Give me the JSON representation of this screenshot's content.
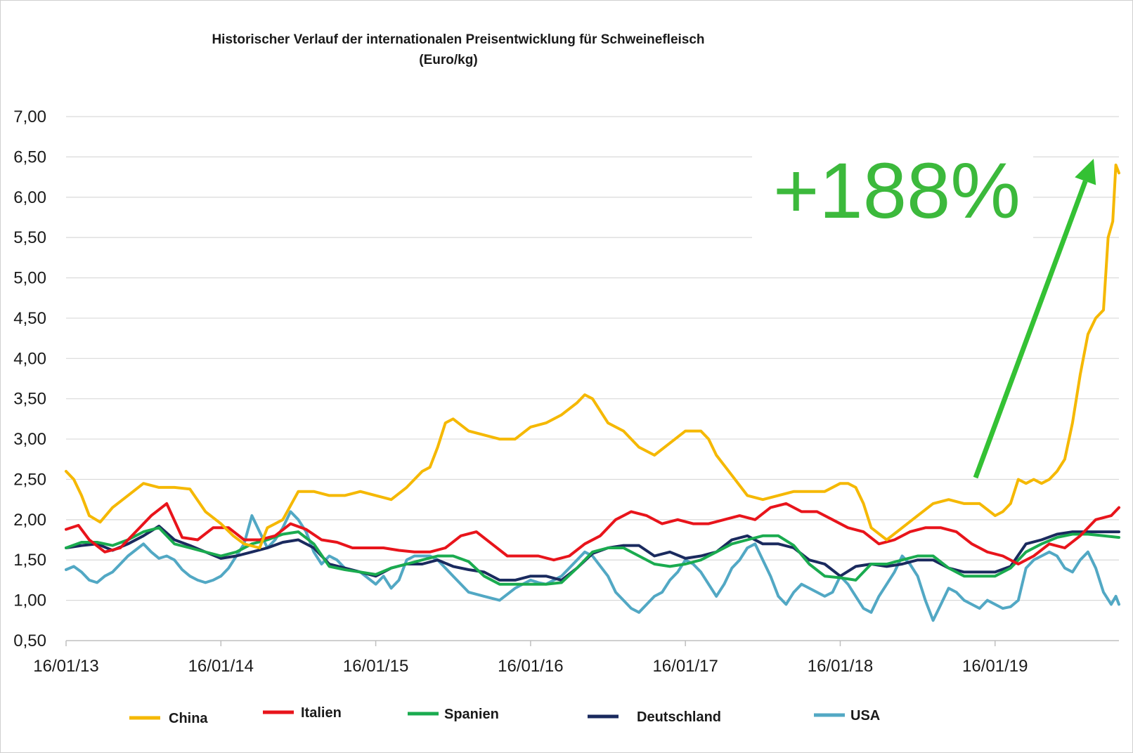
{
  "chart_data": {
    "type": "line",
    "title": "Historischer Verlauf der internationalen Preisentwicklung für Schweinefleisch",
    "subtitle": "(Euro/kg)",
    "xlabel": "",
    "ylabel": "",
    "ylim": [
      0.5,
      7.0
    ],
    "y_ticks": [
      "7,00",
      "6,50",
      "6,00",
      "5,50",
      "5,00",
      "4,50",
      "4,00",
      "3,50",
      "3,00",
      "2,50",
      "2,00",
      "1,50",
      "1,00",
      "0,50"
    ],
    "y_tick_values": [
      7.0,
      6.5,
      6.0,
      5.5,
      5.0,
      4.5,
      4.0,
      3.5,
      3.0,
      2.5,
      2.0,
      1.5,
      1.0,
      0.5
    ],
    "x_ticks": [
      "16/01/13",
      "16/01/14",
      "16/01/15",
      "16/01/16",
      "16/01/17",
      "16/01/18",
      "16/01/19"
    ],
    "x_tick_values": [
      2013.0,
      2014.0,
      2015.0,
      2016.0,
      2017.0,
      2018.0,
      2019.0
    ],
    "xlim": [
      2013.0,
      2019.8
    ],
    "grid": "horizontal",
    "legend_position": "bottom",
    "series": [
      {
        "name": "China",
        "color": "#f5b800",
        "x": [
          2013.0,
          2013.05,
          2013.1,
          2013.15,
          2013.22,
          2013.3,
          2013.4,
          2013.5,
          2013.6,
          2013.7,
          2013.8,
          2013.9,
          2014.0,
          2014.08,
          2014.15,
          2014.25,
          2014.3,
          2014.35,
          2014.4,
          2014.5,
          2014.6,
          2014.7,
          2014.8,
          2014.9,
          2015.0,
          2015.1,
          2015.2,
          2015.3,
          2015.35,
          2015.4,
          2015.45,
          2015.5,
          2015.6,
          2015.7,
          2015.8,
          2015.9,
          2016.0,
          2016.1,
          2016.2,
          2016.3,
          2016.35,
          2016.4,
          2016.5,
          2016.6,
          2016.7,
          2016.8,
          2016.9,
          2017.0,
          2017.1,
          2017.15,
          2017.2,
          2017.3,
          2017.4,
          2017.5,
          2017.6,
          2017.7,
          2017.8,
          2017.9,
          2018.0,
          2018.05,
          2018.1,
          2018.15,
          2018.2,
          2018.3,
          2018.4,
          2018.5,
          2018.6,
          2018.7,
          2018.8,
          2018.9,
          2019.0,
          2019.05,
          2019.1,
          2019.15,
          2019.2,
          2019.25,
          2019.3,
          2019.35,
          2019.4,
          2019.45,
          2019.5,
          2019.55,
          2019.6,
          2019.65,
          2019.7,
          2019.73,
          2019.76,
          2019.78,
          2019.8
        ],
        "y": [
          2.6,
          2.5,
          2.3,
          2.05,
          1.97,
          2.15,
          2.3,
          2.45,
          2.4,
          2.4,
          2.38,
          2.1,
          1.95,
          1.8,
          1.7,
          1.65,
          1.9,
          1.95,
          2.0,
          2.35,
          2.35,
          2.3,
          2.3,
          2.35,
          2.3,
          2.25,
          2.4,
          2.6,
          2.65,
          2.9,
          3.2,
          3.25,
          3.1,
          3.05,
          3.0,
          3.0,
          3.15,
          3.2,
          3.3,
          3.45,
          3.55,
          3.5,
          3.2,
          3.1,
          2.9,
          2.8,
          2.95,
          3.1,
          3.1,
          3.0,
          2.8,
          2.55,
          2.3,
          2.25,
          2.3,
          2.35,
          2.35,
          2.35,
          2.45,
          2.45,
          2.4,
          2.2,
          1.9,
          1.75,
          1.9,
          2.05,
          2.2,
          2.25,
          2.2,
          2.2,
          2.05,
          2.1,
          2.2,
          2.5,
          2.45,
          2.5,
          2.45,
          2.5,
          2.6,
          2.75,
          3.2,
          3.8,
          4.3,
          4.5,
          4.6,
          5.5,
          5.7,
          6.4,
          6.3
        ]
      },
      {
        "name": "Italien",
        "color": "#e8141b",
        "x": [
          2013.0,
          2013.08,
          2013.15,
          2013.25,
          2013.35,
          2013.45,
          2013.55,
          2013.65,
          2013.75,
          2013.85,
          2013.95,
          2014.05,
          2014.15,
          2014.25,
          2014.35,
          2014.45,
          2014.55,
          2014.65,
          2014.75,
          2014.85,
          2014.95,
          2015.05,
          2015.15,
          2015.25,
          2015.35,
          2015.45,
          2015.55,
          2015.65,
          2015.75,
          2015.85,
          2015.95,
          2016.05,
          2016.15,
          2016.25,
          2016.35,
          2016.45,
          2016.55,
          2016.65,
          2016.75,
          2016.85,
          2016.95,
          2017.05,
          2017.15,
          2017.25,
          2017.35,
          2017.45,
          2017.55,
          2017.65,
          2017.75,
          2017.85,
          2017.95,
          2018.05,
          2018.15,
          2018.25,
          2018.35,
          2018.45,
          2018.55,
          2018.65,
          2018.75,
          2018.85,
          2018.95,
          2019.05,
          2019.15,
          2019.25,
          2019.35,
          2019.45,
          2019.55,
          2019.65,
          2019.75,
          2019.8
        ],
        "y": [
          1.88,
          1.93,
          1.75,
          1.6,
          1.65,
          1.85,
          2.05,
          2.2,
          1.78,
          1.75,
          1.9,
          1.9,
          1.75,
          1.75,
          1.8,
          1.95,
          1.88,
          1.75,
          1.72,
          1.65,
          1.65,
          1.65,
          1.62,
          1.6,
          1.6,
          1.65,
          1.8,
          1.85,
          1.7,
          1.55,
          1.55,
          1.55,
          1.5,
          1.55,
          1.7,
          1.8,
          2.0,
          2.1,
          2.05,
          1.95,
          2.0,
          1.95,
          1.95,
          2.0,
          2.05,
          2.0,
          2.15,
          2.2,
          2.1,
          2.1,
          2.0,
          1.9,
          1.85,
          1.7,
          1.75,
          1.85,
          1.9,
          1.9,
          1.85,
          1.7,
          1.6,
          1.55,
          1.45,
          1.55,
          1.7,
          1.65,
          1.8,
          2.0,
          2.05,
          2.15
        ]
      },
      {
        "name": "Spanien",
        "color": "#1aab4f",
        "x": [
          2013.0,
          2013.1,
          2013.2,
          2013.3,
          2013.4,
          2013.5,
          2013.6,
          2013.7,
          2013.8,
          2013.9,
          2014.0,
          2014.1,
          2014.2,
          2014.3,
          2014.4,
          2014.5,
          2014.6,
          2014.7,
          2014.8,
          2014.9,
          2015.0,
          2015.1,
          2015.2,
          2015.3,
          2015.4,
          2015.5,
          2015.6,
          2015.7,
          2015.8,
          2015.9,
          2016.0,
          2016.1,
          2016.2,
          2016.3,
          2016.4,
          2016.5,
          2016.6,
          2016.7,
          2016.8,
          2016.9,
          2017.0,
          2017.1,
          2017.2,
          2017.3,
          2017.4,
          2017.5,
          2017.6,
          2017.7,
          2017.8,
          2017.9,
          2018.0,
          2018.1,
          2018.2,
          2018.3,
          2018.4,
          2018.5,
          2018.6,
          2018.7,
          2018.8,
          2018.9,
          2019.0,
          2019.1,
          2019.2,
          2019.3,
          2019.4,
          2019.5,
          2019.6,
          2019.7,
          2019.8
        ],
        "y": [
          1.65,
          1.72,
          1.72,
          1.68,
          1.75,
          1.85,
          1.9,
          1.7,
          1.65,
          1.6,
          1.55,
          1.6,
          1.7,
          1.75,
          1.82,
          1.85,
          1.7,
          1.42,
          1.38,
          1.35,
          1.32,
          1.4,
          1.45,
          1.5,
          1.55,
          1.55,
          1.48,
          1.3,
          1.2,
          1.2,
          1.2,
          1.2,
          1.22,
          1.4,
          1.6,
          1.65,
          1.65,
          1.55,
          1.45,
          1.42,
          1.45,
          1.5,
          1.6,
          1.7,
          1.75,
          1.8,
          1.8,
          1.68,
          1.45,
          1.3,
          1.28,
          1.25,
          1.45,
          1.45,
          1.5,
          1.55,
          1.55,
          1.4,
          1.3,
          1.3,
          1.3,
          1.4,
          1.6,
          1.7,
          1.78,
          1.82,
          1.82,
          1.8,
          1.78
        ]
      },
      {
        "name": "Deutschland",
        "color": "#1a2a5e",
        "x": [
          2013.0,
          2013.1,
          2013.2,
          2013.3,
          2013.4,
          2013.5,
          2013.6,
          2013.7,
          2013.8,
          2013.9,
          2014.0,
          2014.1,
          2014.2,
          2014.3,
          2014.4,
          2014.5,
          2014.6,
          2014.7,
          2014.8,
          2014.9,
          2015.0,
          2015.1,
          2015.2,
          2015.3,
          2015.4,
          2015.5,
          2015.6,
          2015.7,
          2015.8,
          2015.9,
          2016.0,
          2016.1,
          2016.2,
          2016.3,
          2016.4,
          2016.5,
          2016.6,
          2016.7,
          2016.8,
          2016.9,
          2017.0,
          2017.1,
          2017.2,
          2017.3,
          2017.4,
          2017.5,
          2017.6,
          2017.7,
          2017.8,
          2017.9,
          2018.0,
          2018.1,
          2018.2,
          2018.3,
          2018.4,
          2018.5,
          2018.6,
          2018.7,
          2018.8,
          2018.9,
          2019.0,
          2019.1,
          2019.2,
          2019.3,
          2019.4,
          2019.5,
          2019.6,
          2019.7,
          2019.8
        ],
        "y": [
          1.65,
          1.68,
          1.7,
          1.62,
          1.7,
          1.8,
          1.92,
          1.75,
          1.68,
          1.6,
          1.52,
          1.55,
          1.6,
          1.65,
          1.72,
          1.75,
          1.65,
          1.45,
          1.4,
          1.35,
          1.3,
          1.4,
          1.45,
          1.45,
          1.5,
          1.42,
          1.38,
          1.35,
          1.25,
          1.25,
          1.3,
          1.3,
          1.25,
          1.4,
          1.58,
          1.65,
          1.68,
          1.68,
          1.55,
          1.6,
          1.52,
          1.55,
          1.6,
          1.75,
          1.8,
          1.7,
          1.7,
          1.65,
          1.5,
          1.45,
          1.3,
          1.42,
          1.45,
          1.42,
          1.45,
          1.5,
          1.5,
          1.4,
          1.35,
          1.35,
          1.35,
          1.42,
          1.7,
          1.75,
          1.82,
          1.85,
          1.85,
          1.85,
          1.85
        ]
      },
      {
        "name": "USA",
        "color": "#52a8c4",
        "x": [
          2013.0,
          2013.05,
          2013.1,
          2013.15,
          2013.2,
          2013.25,
          2013.3,
          2013.35,
          2013.4,
          2013.5,
          2013.55,
          2013.6,
          2013.65,
          2013.7,
          2013.75,
          2013.8,
          2013.85,
          2013.9,
          2013.95,
          2014.0,
          2014.05,
          2014.1,
          2014.15,
          2014.2,
          2014.25,
          2014.3,
          2014.35,
          2014.4,
          2014.45,
          2014.5,
          2014.55,
          2014.6,
          2014.65,
          2014.7,
          2014.75,
          2014.8,
          2014.9,
          2015.0,
          2015.05,
          2015.1,
          2015.15,
          2015.2,
          2015.25,
          2015.3,
          2015.35,
          2015.4,
          2015.5,
          2015.6,
          2015.7,
          2015.8,
          2015.9,
          2016.0,
          2016.05,
          2016.1,
          2016.2,
          2016.25,
          2016.3,
          2016.35,
          2016.4,
          2016.5,
          2016.55,
          2016.6,
          2016.65,
          2016.7,
          2016.75,
          2016.8,
          2016.85,
          2016.9,
          2016.95,
          2017.0,
          2017.05,
          2017.1,
          2017.15,
          2017.2,
          2017.25,
          2017.3,
          2017.35,
          2017.4,
          2017.45,
          2017.5,
          2017.55,
          2017.6,
          2017.65,
          2017.7,
          2017.75,
          2017.8,
          2017.85,
          2017.9,
          2017.95,
          2018.0,
          2018.05,
          2018.1,
          2018.15,
          2018.2,
          2018.25,
          2018.3,
          2018.35,
          2018.4,
          2018.45,
          2018.5,
          2018.55,
          2018.6,
          2018.65,
          2018.7,
          2018.75,
          2018.8,
          2018.85,
          2018.9,
          2018.95,
          2019.0,
          2019.05,
          2019.1,
          2019.15,
          2019.2,
          2019.25,
          2019.3,
          2019.35,
          2019.4,
          2019.45,
          2019.5,
          2019.55,
          2019.6,
          2019.65,
          2019.7,
          2019.75,
          2019.78,
          2019.8
        ],
        "y": [
          1.38,
          1.42,
          1.35,
          1.25,
          1.22,
          1.3,
          1.35,
          1.45,
          1.55,
          1.7,
          1.6,
          1.52,
          1.55,
          1.5,
          1.38,
          1.3,
          1.25,
          1.22,
          1.25,
          1.3,
          1.4,
          1.55,
          1.7,
          2.05,
          1.85,
          1.65,
          1.75,
          1.9,
          2.1,
          2.0,
          1.85,
          1.6,
          1.45,
          1.55,
          1.5,
          1.4,
          1.35,
          1.2,
          1.3,
          1.15,
          1.25,
          1.5,
          1.55,
          1.55,
          1.55,
          1.5,
          1.3,
          1.1,
          1.05,
          1.0,
          1.15,
          1.25,
          1.22,
          1.2,
          1.3,
          1.4,
          1.5,
          1.6,
          1.55,
          1.3,
          1.1,
          1.0,
          0.9,
          0.85,
          0.95,
          1.05,
          1.1,
          1.25,
          1.35,
          1.5,
          1.45,
          1.35,
          1.2,
          1.05,
          1.2,
          1.4,
          1.5,
          1.65,
          1.7,
          1.5,
          1.3,
          1.05,
          0.95,
          1.1,
          1.2,
          1.15,
          1.1,
          1.05,
          1.1,
          1.3,
          1.2,
          1.05,
          0.9,
          0.85,
          1.05,
          1.2,
          1.35,
          1.55,
          1.45,
          1.3,
          1.0,
          0.75,
          0.95,
          1.15,
          1.1,
          1.0,
          0.95,
          0.9,
          1.0,
          0.95,
          0.9,
          0.92,
          1.0,
          1.4,
          1.5,
          1.55,
          1.6,
          1.55,
          1.4,
          1.35,
          1.5,
          1.6,
          1.4,
          1.1,
          0.95,
          1.05,
          0.95
        ]
      }
    ],
    "annotations": [
      {
        "text": "+188%",
        "color": "#3cb93c"
      }
    ]
  }
}
